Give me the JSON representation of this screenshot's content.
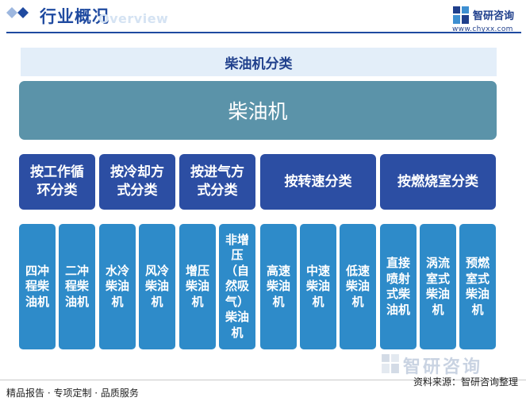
{
  "header": {
    "title": "行业概况",
    "subtitle_en": "Overview",
    "brand_name": "智研咨询",
    "brand_url": "www.chyxx.com"
  },
  "diagram": {
    "title": "柴油机分类",
    "root": "柴油机",
    "categories": [
      {
        "label": "按工作循环分类",
        "items": [
          "四冲程柴油机",
          "二冲程柴油机"
        ]
      },
      {
        "label": "按冷却方式分类",
        "items": [
          "水冷柴油机",
          "风冷柴油机"
        ]
      },
      {
        "label": "按进气方式分类",
        "items": [
          "增压柴油机",
          "非增压（自然吸气）柴油机"
        ]
      },
      {
        "label": "按转速分类",
        "items": [
          "高速柴油机",
          "中速柴油机",
          "低速柴油机"
        ]
      },
      {
        "label": "按燃烧室分类",
        "items": [
          "直接喷射式柴油机",
          "涡流室式柴油机",
          "预燃室式柴油机"
        ]
      }
    ]
  },
  "footer": {
    "left": "精品报告 · 专项定制 · 品质服务",
    "source": "资料来源：智研咨询整理",
    "watermark": "智研咨询"
  },
  "colors": {
    "accent": "#1f4aa0",
    "root_box": "#5b93a9",
    "category_box": "#2c4ea3",
    "leaf_box": "#2e8bc9",
    "title_band": "#e3eef9"
  }
}
